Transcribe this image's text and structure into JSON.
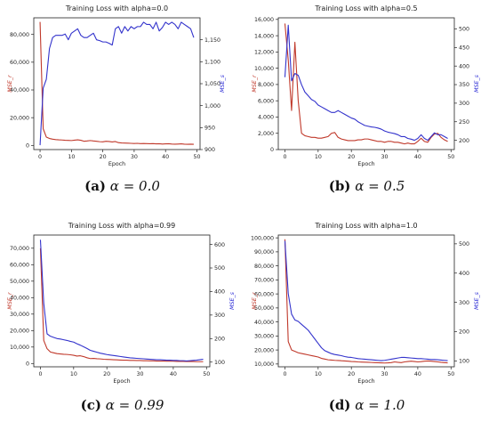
{
  "chart_data": [
    {
      "type": "line",
      "title": "Training Loss with alpha=0.0",
      "xlabel": "Epoch",
      "ylabel_left": "MSE_r",
      "ylabel_right": "MSE_s",
      "xlim": [
        -2,
        51
      ],
      "xticks": [
        0,
        10,
        20,
        30,
        40,
        50
      ],
      "ylim_left": [
        -3000,
        92000
      ],
      "yticks_left": [
        0,
        20000,
        40000,
        60000,
        80000
      ],
      "ytick_labels_left": [
        "0",
        "20,000",
        "40,000",
        "60,000",
        "80,000"
      ],
      "ylim_right": [
        900,
        1200
      ],
      "yticks_right": [
        900,
        950,
        1000,
        1050,
        1100,
        1150
      ],
      "ytick_labels_right": [
        "900",
        "950",
        "1,000",
        "1,050",
        "1,100",
        "1,150"
      ],
      "series": [
        {
          "color": "#c0392b",
          "axis": "left",
          "x": [
            0,
            1,
            2,
            3,
            4,
            5,
            6,
            7,
            8,
            9,
            10,
            11,
            12,
            13,
            14,
            15,
            16,
            17,
            18,
            19,
            20,
            21,
            22,
            23,
            24,
            25,
            26,
            27,
            28,
            29,
            30,
            31,
            32,
            33,
            34,
            35,
            36,
            37,
            38,
            39,
            40,
            41,
            42,
            43,
            44,
            45,
            46,
            47,
            48,
            49
          ],
          "values": [
            89000,
            12000,
            6000,
            5000,
            4500,
            4200,
            4000,
            3900,
            3700,
            3600,
            3500,
            3800,
            4000,
            3700,
            3000,
            3200,
            3500,
            3200,
            3000,
            2700,
            2600,
            3000,
            2800,
            2500,
            2800,
            2000,
            1800,
            1700,
            1600,
            1500,
            1400,
            1500,
            1300,
            1400,
            1300,
            1200,
            1300,
            1100,
            1200,
            1000,
            1100,
            1200,
            1000,
            900,
            1000,
            1100,
            900,
            800,
            900,
            800
          ]
        },
        {
          "color": "#3333cc",
          "axis": "right",
          "x": [
            0,
            1,
            2,
            3,
            4,
            5,
            6,
            7,
            8,
            9,
            10,
            11,
            12,
            13,
            14,
            15,
            16,
            17,
            18,
            19,
            20,
            21,
            22,
            23,
            24,
            25,
            26,
            27,
            28,
            29,
            30,
            31,
            32,
            33,
            34,
            35,
            36,
            37,
            38,
            39,
            40,
            41,
            42,
            43,
            44,
            45,
            46,
            47,
            48,
            49
          ],
          "values": [
            910,
            1040,
            1060,
            1130,
            1155,
            1160,
            1160,
            1160,
            1163,
            1150,
            1165,
            1170,
            1175,
            1160,
            1155,
            1155,
            1160,
            1165,
            1150,
            1148,
            1145,
            1145,
            1142,
            1138,
            1175,
            1180,
            1165,
            1180,
            1170,
            1180,
            1175,
            1180,
            1180,
            1190,
            1185,
            1185,
            1175,
            1190,
            1170,
            1178,
            1190,
            1185,
            1190,
            1185,
            1175,
            1190,
            1185,
            1180,
            1175,
            1155
          ]
        }
      ]
    },
    {
      "type": "line",
      "title": "Training Loss with alpha=0.5",
      "xlabel": "Epoch",
      "ylabel_left": "MSE_r",
      "ylabel_right": "MSE_s",
      "xlim": [
        -2,
        51
      ],
      "xticks": [
        0,
        10,
        20,
        30,
        40,
        50
      ],
      "ylim_left": [
        0,
        16200
      ],
      "yticks_left": [
        0,
        2000,
        4000,
        6000,
        8000,
        10000,
        12000,
        14000,
        16000
      ],
      "ytick_labels_left": [
        "0",
        "2,000",
        "4,000",
        "6,000",
        "8,000",
        "10,000",
        "12,000",
        "14,000",
        "16,000"
      ],
      "ylim_right": [
        175,
        530
      ],
      "yticks_right": [
        200,
        250,
        300,
        350,
        400,
        450,
        500
      ],
      "ytick_labels_right": [
        "200",
        "250",
        "300",
        "350",
        "400",
        "450",
        "500"
      ],
      "series": [
        {
          "color": "#c0392b",
          "axis": "left",
          "x": [
            0,
            1,
            2,
            3,
            4,
            5,
            6,
            7,
            8,
            9,
            10,
            11,
            12,
            13,
            14,
            15,
            16,
            17,
            18,
            19,
            20,
            21,
            22,
            23,
            24,
            25,
            26,
            27,
            28,
            29,
            30,
            31,
            32,
            33,
            34,
            35,
            36,
            37,
            38,
            39,
            40,
            41,
            42,
            43,
            44,
            45,
            46,
            47,
            48,
            49
          ],
          "values": [
            15500,
            11000,
            4800,
            13200,
            6000,
            2000,
            1700,
            1600,
            1500,
            1500,
            1400,
            1400,
            1500,
            1600,
            2000,
            2100,
            1500,
            1300,
            1200,
            1100,
            1100,
            1100,
            1200,
            1200,
            1300,
            1300,
            1200,
            1100,
            1000,
            1000,
            900,
            1000,
            1000,
            900,
            900,
            800,
            700,
            800,
            700,
            700,
            1000,
            1400,
            1000,
            900,
            1500,
            1900,
            2000,
            1500,
            1200,
            1000
          ]
        },
        {
          "color": "#3333cc",
          "axis": "right",
          "x": [
            0,
            1,
            2,
            3,
            4,
            5,
            6,
            7,
            8,
            9,
            10,
            11,
            12,
            13,
            14,
            15,
            16,
            17,
            18,
            19,
            20,
            21,
            22,
            23,
            24,
            25,
            26,
            27,
            28,
            29,
            30,
            31,
            32,
            33,
            34,
            35,
            36,
            37,
            38,
            39,
            40,
            41,
            42,
            43,
            44,
            45,
            46,
            47,
            48,
            49
          ],
          "values": [
            370,
            510,
            360,
            380,
            375,
            350,
            330,
            320,
            310,
            305,
            295,
            290,
            285,
            280,
            275,
            275,
            280,
            275,
            270,
            265,
            260,
            257,
            250,
            245,
            240,
            238,
            236,
            235,
            233,
            230,
            225,
            222,
            220,
            218,
            215,
            210,
            210,
            205,
            203,
            200,
            205,
            215,
            205,
            200,
            210,
            220,
            215,
            215,
            210,
            205
          ]
        }
      ]
    },
    {
      "type": "line",
      "title": "Training Loss with alpha=0.99",
      "xlabel": "Epoch",
      "ylabel_left": "MSE_r",
      "ylabel_right": "MSE_s",
      "xlim": [
        -2,
        51
      ],
      "xticks": [
        0,
        10,
        20,
        30,
        40,
        50
      ],
      "ylim_left": [
        -2000,
        78000
      ],
      "yticks_left": [
        0,
        10000,
        20000,
        30000,
        40000,
        50000,
        60000,
        70000
      ],
      "ytick_labels_left": [
        "0",
        "10,000",
        "20,000",
        "30,000",
        "40,000",
        "50,000",
        "60,000",
        "70,000"
      ],
      "ylim_right": [
        80,
        640
      ],
      "yticks_right": [
        100,
        200,
        300,
        400,
        500,
        600
      ],
      "ytick_labels_right": [
        "100",
        "200",
        "300",
        "400",
        "500",
        "600"
      ],
      "series": [
        {
          "color": "#c0392b",
          "axis": "left",
          "x": [
            0,
            1,
            2,
            3,
            4,
            5,
            6,
            7,
            8,
            9,
            10,
            11,
            12,
            13,
            14,
            15,
            16,
            17,
            18,
            19,
            20,
            21,
            22,
            23,
            24,
            25,
            26,
            27,
            28,
            29,
            30,
            31,
            32,
            33,
            34,
            35,
            36,
            37,
            38,
            39,
            40,
            41,
            42,
            43,
            44,
            45,
            46,
            47,
            48,
            49
          ],
          "values": [
            70000,
            14000,
            9000,
            7000,
            6500,
            6000,
            5800,
            5600,
            5500,
            5300,
            5000,
            4500,
            4700,
            4200,
            3500,
            3000,
            3100,
            2900,
            2800,
            2600,
            2500,
            2400,
            2300,
            2200,
            2100,
            2000,
            2000,
            1900,
            1900,
            1800,
            1800,
            1700,
            1700,
            1600,
            1600,
            1500,
            1500,
            1500,
            1400,
            1400,
            1400,
            1300,
            1300,
            1300,
            1200,
            1200,
            1200,
            1100,
            1100,
            1100
          ]
        },
        {
          "color": "#3333cc",
          "axis": "right",
          "x": [
            0,
            1,
            2,
            3,
            4,
            5,
            6,
            7,
            8,
            9,
            10,
            11,
            12,
            13,
            14,
            15,
            16,
            17,
            18,
            19,
            20,
            21,
            22,
            23,
            24,
            25,
            26,
            27,
            28,
            29,
            30,
            31,
            32,
            33,
            34,
            35,
            36,
            37,
            38,
            39,
            40,
            41,
            42,
            43,
            44,
            45,
            46,
            47,
            48,
            49
          ],
          "values": [
            620,
            350,
            220,
            210,
            205,
            200,
            198,
            195,
            192,
            188,
            185,
            178,
            172,
            165,
            158,
            150,
            146,
            142,
            138,
            135,
            132,
            130,
            128,
            126,
            124,
            122,
            120,
            118,
            117,
            116,
            115,
            114,
            113,
            112,
            111,
            110,
            110,
            109,
            108,
            108,
            107,
            107,
            106,
            106,
            105,
            106,
            107,
            108,
            110,
            112
          ]
        }
      ]
    },
    {
      "type": "line",
      "title": "Training Loss with alpha=1.0",
      "xlabel": "Epoch",
      "ylabel_left": "MSE_r",
      "ylabel_right": "MSE_s",
      "xlim": [
        -2,
        51
      ],
      "xticks": [
        0,
        10,
        20,
        30,
        40,
        50
      ],
      "ylim_left": [
        8000,
        102000
      ],
      "yticks_left": [
        10000,
        20000,
        30000,
        40000,
        50000,
        60000,
        70000,
        80000,
        90000,
        100000
      ],
      "ytick_labels_left": [
        "10,000",
        "20,000",
        "30,000",
        "40,000",
        "50,000",
        "60,000",
        "70,000",
        "80,000",
        "90,000",
        "100,000"
      ],
      "ylim_right": [
        80,
        530
      ],
      "yticks_right": [
        100,
        200,
        300,
        400,
        500
      ],
      "ytick_labels_right": [
        "100",
        "200",
        "300",
        "400",
        "500"
      ],
      "series": [
        {
          "color": "#c0392b",
          "axis": "left",
          "x": [
            0,
            1,
            2,
            3,
            4,
            5,
            6,
            7,
            8,
            9,
            10,
            11,
            12,
            13,
            14,
            15,
            16,
            17,
            18,
            19,
            20,
            21,
            22,
            23,
            24,
            25,
            26,
            27,
            28,
            29,
            30,
            31,
            32,
            33,
            34,
            35,
            36,
            37,
            38,
            39,
            40,
            41,
            42,
            43,
            44,
            45,
            46,
            47,
            48,
            49
          ],
          "values": [
            99000,
            26000,
            20000,
            19000,
            18000,
            17500,
            17000,
            16500,
            16000,
            15500,
            15000,
            14000,
            13500,
            13000,
            12800,
            12600,
            12500,
            12300,
            12200,
            12000,
            11800,
            11700,
            11500,
            11400,
            11300,
            11200,
            11100,
            11000,
            10900,
            10800,
            10700,
            10800,
            11000,
            11500,
            11200,
            11000,
            11500,
            11800,
            12000,
            11800,
            11500,
            11700,
            12000,
            12200,
            12000,
            11800,
            11500,
            11200,
            11000,
            10800
          ]
        },
        {
          "color": "#3333cc",
          "axis": "right",
          "x": [
            0,
            1,
            2,
            3,
            4,
            5,
            6,
            7,
            8,
            9,
            10,
            11,
            12,
            13,
            14,
            15,
            16,
            17,
            18,
            19,
            20,
            21,
            22,
            23,
            24,
            25,
            26,
            27,
            28,
            29,
            30,
            31,
            32,
            33,
            34,
            35,
            36,
            37,
            38,
            39,
            40,
            41,
            42,
            43,
            44,
            45,
            46,
            47,
            48,
            49
          ],
          "values": [
            510,
            330,
            260,
            240,
            235,
            225,
            215,
            205,
            190,
            175,
            160,
            145,
            135,
            130,
            125,
            122,
            120,
            118,
            115,
            113,
            112,
            110,
            108,
            107,
            106,
            105,
            104,
            103,
            102,
            101,
            102,
            104,
            106,
            108,
            110,
            112,
            112,
            111,
            110,
            109,
            108,
            108,
            107,
            106,
            105,
            105,
            104,
            103,
            102,
            101
          ]
        }
      ]
    }
  ],
  "captions": [
    {
      "label": "(a)",
      "text": "α = 0.0"
    },
    {
      "label": "(b)",
      "text": "α = 0.5"
    },
    {
      "label": "(c)",
      "text": "α = 0.99"
    },
    {
      "label": "(d)",
      "text": "α = 1.0"
    }
  ]
}
